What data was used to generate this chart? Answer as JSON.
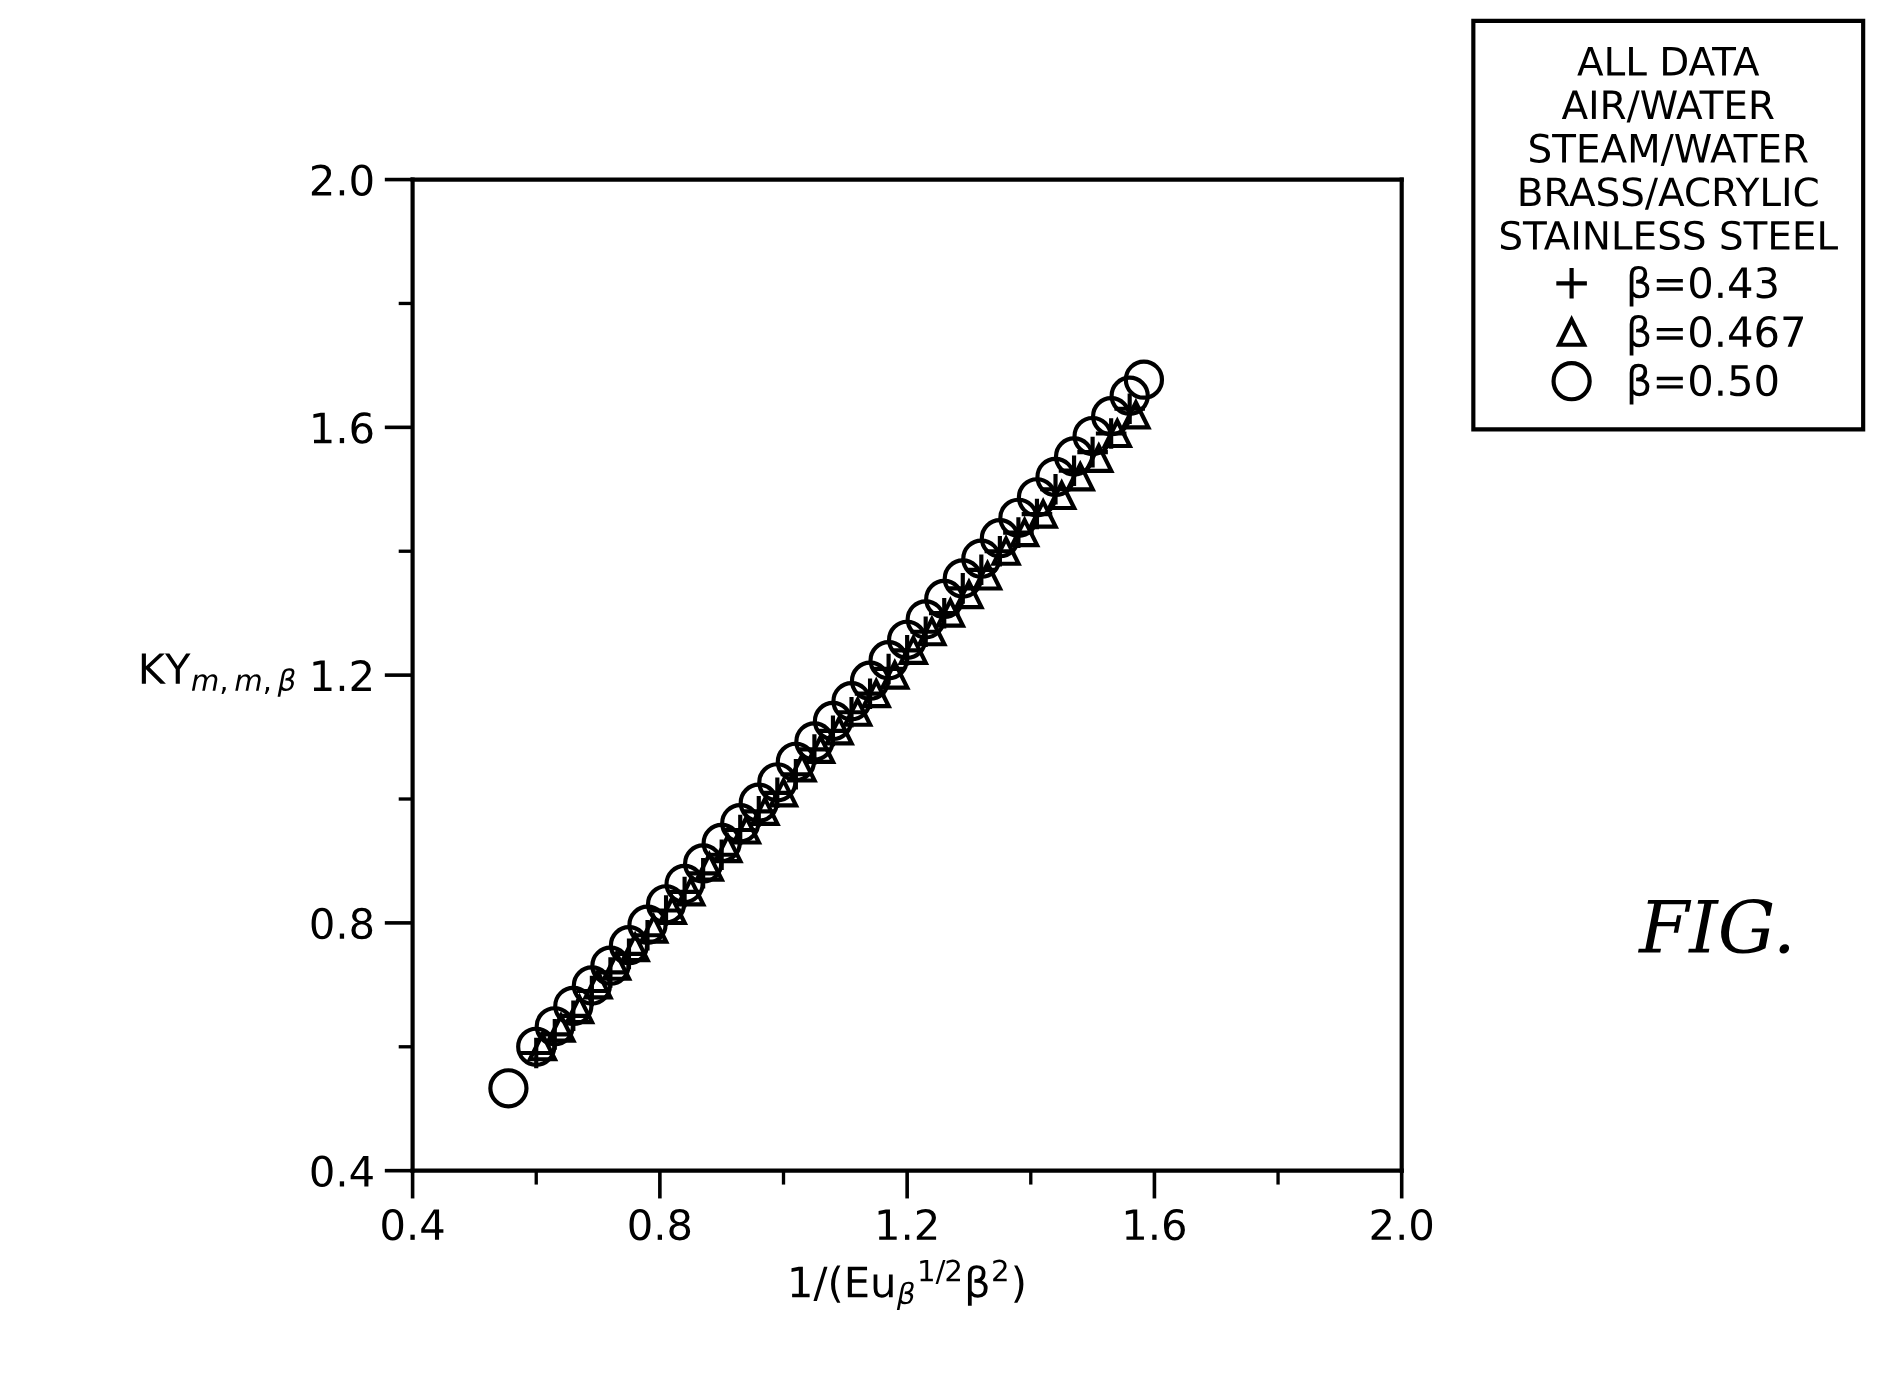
{
  "chart_data": {
    "type": "scatter",
    "xlabel": "1/(Eu$_{β}$$^{1/2}$β$^{2}$)",
    "ylabel": "KY$_{m,m,β}$",
    "legend_title": "ALL DATA\nAIR/WATER\nSTEAM/WATER\nBRASS/ACRYLIC\nSTAINLESS STEEL",
    "annotations": [
      "FIG."
    ],
    "xlim": [
      0.4,
      2.0
    ],
    "ylim": [
      0.4,
      2.0
    ],
    "xticks": [
      0.4,
      0.8,
      1.2,
      1.6,
      {
        "value": 2,
        "label": "2.0"
      }
    ],
    "yticks": [
      0.4,
      0.8,
      1.2,
      1.6,
      {
        "value": 2,
        "label": "2.0"
      }
    ],
    "grid": false,
    "legend": "top right",
    "series": [
      {
        "name": "β=0.43",
        "color": "#000000",
        "marker": "cross",
        "x": [
          0.6,
          0.63,
          0.66,
          0.69,
          0.72,
          0.75,
          0.78,
          0.81,
          0.84,
          0.87,
          0.9,
          0.93,
          0.96,
          0.99,
          1.02,
          1.05,
          1.08,
          1.11,
          1.14,
          1.17,
          1.2,
          1.23,
          1.26,
          1.29,
          1.32,
          1.35,
          1.38,
          1.41,
          1.44,
          1.47,
          1.5,
          1.53,
          1.56
        ],
        "values": [
          0.59,
          0.62,
          0.65,
          0.69,
          0.72,
          0.75,
          0.78,
          0.82,
          0.85,
          0.88,
          0.91,
          0.95,
          0.98,
          1.01,
          1.04,
          1.08,
          1.11,
          1.14,
          1.17,
          1.21,
          1.24,
          1.27,
          1.3,
          1.34,
          1.37,
          1.4,
          1.43,
          1.46,
          1.5,
          1.53,
          1.56,
          1.59,
          1.63
        ]
      },
      {
        "name": "β=0.467",
        "color": "#000000",
        "marker": "triangle",
        "x": [
          0.61,
          0.64,
          0.67,
          0.7,
          0.73,
          0.76,
          0.79,
          0.82,
          0.85,
          0.88,
          0.91,
          0.94,
          0.97,
          1.0,
          1.03,
          1.06,
          1.09,
          1.12,
          1.15,
          1.18,
          1.21,
          1.24,
          1.27,
          1.3,
          1.33,
          1.36,
          1.39,
          1.42,
          1.45,
          1.48,
          1.51,
          1.54,
          1.57
        ],
        "values": [
          0.6,
          0.63,
          0.66,
          0.7,
          0.73,
          0.76,
          0.79,
          0.82,
          0.85,
          0.89,
          0.92,
          0.95,
          0.98,
          1.01,
          1.05,
          1.08,
          1.11,
          1.14,
          1.17,
          1.2,
          1.24,
          1.27,
          1.3,
          1.33,
          1.36,
          1.4,
          1.43,
          1.46,
          1.49,
          1.52,
          1.55,
          1.59,
          1.62
        ]
      },
      {
        "name": "β=0.50",
        "color": "#000000",
        "marker": "circle",
        "x": [
          0.555,
          0.6,
          0.63,
          0.66,
          0.69,
          0.72,
          0.75,
          0.78,
          0.81,
          0.84,
          0.87,
          0.9,
          0.93,
          0.96,
          0.99,
          1.02,
          1.05,
          1.08,
          1.11,
          1.14,
          1.17,
          1.2,
          1.23,
          1.26,
          1.29,
          1.32,
          1.35,
          1.38,
          1.41,
          1.44,
          1.47,
          1.5,
          1.53,
          1.56,
          1.583
        ],
        "values": [
          0.533,
          0.6,
          0.633,
          0.666,
          0.699,
          0.731,
          0.764,
          0.797,
          0.83,
          0.863,
          0.896,
          0.929,
          0.961,
          0.994,
          1.027,
          1.06,
          1.093,
          1.126,
          1.158,
          1.191,
          1.224,
          1.257,
          1.29,
          1.323,
          1.356,
          1.388,
          1.421,
          1.454,
          1.487,
          1.52,
          1.553,
          1.586,
          1.618,
          1.651,
          1.677
        ]
      }
    ]
  }
}
